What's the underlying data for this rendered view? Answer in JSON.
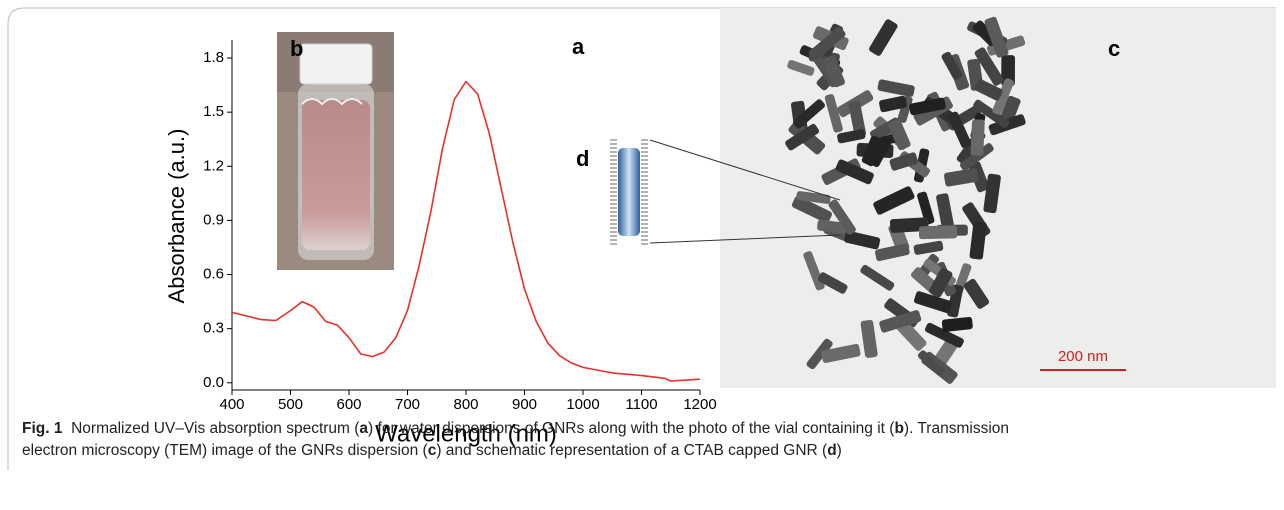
{
  "chart_data": {
    "type": "line",
    "x": [
      400,
      425,
      450,
      475,
      500,
      520,
      540,
      560,
      580,
      600,
      620,
      640,
      660,
      680,
      700,
      720,
      740,
      760,
      780,
      800,
      820,
      840,
      860,
      880,
      900,
      920,
      940,
      960,
      980,
      1000,
      1050,
      1100,
      1140,
      1150,
      1200
    ],
    "values": [
      0.39,
      0.37,
      0.35,
      0.345,
      0.4,
      0.45,
      0.42,
      0.34,
      0.32,
      0.25,
      0.16,
      0.145,
      0.17,
      0.25,
      0.4,
      0.65,
      0.95,
      1.3,
      1.57,
      1.67,
      1.6,
      1.38,
      1.08,
      0.78,
      0.52,
      0.34,
      0.22,
      0.15,
      0.11,
      0.085,
      0.055,
      0.04,
      0.025,
      0.01,
      0.02
    ],
    "color": "#e8302a",
    "xlabel": "Wavelength (nm)",
    "ylabel": "Absorbance (a.u.)",
    "xlim": [
      400,
      1200
    ],
    "xticks": [
      400,
      500,
      600,
      700,
      800,
      900,
      1000,
      1100,
      1200
    ],
    "ylim": [
      -0.04,
      1.9
    ],
    "yticks": [
      {
        "value": 0,
        "label": "0.0"
      },
      0.3,
      0.6,
      0.9,
      1.2,
      1.5,
      1.8
    ]
  },
  "panels": {
    "a": "a",
    "b": "b",
    "c": "c",
    "d": "d",
    "scale_bar": "200 nm"
  },
  "caption": {
    "label": "Fig. 1",
    "parts": [
      "Normalized UV–Vis absorption spectrum (",
      "a",
      ") for water dispersions of GNRs along with the photo of the vial containing it (",
      "b",
      "). Transmission",
      "electron microscopy (TEM) image of the GNRs dispersion (",
      "c",
      ") and schematic representation of a CTAB capped GNR (",
      "d",
      ")"
    ]
  }
}
